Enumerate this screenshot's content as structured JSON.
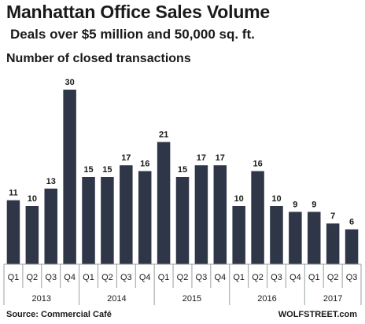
{
  "header": {
    "title": "Manhattan Office Sales Volume",
    "subtitle": "Deals over $5 million and 50,000 sq. ft.",
    "units": "Number of closed transactions"
  },
  "footer": {
    "source": "Source: Commercial Café",
    "credit": "WOLFSTREET.com"
  },
  "colors": {
    "bar": "#2e3648",
    "axis": "#9aa0a6"
  },
  "chart_data": {
    "type": "bar",
    "title": "Manhattan Office Sales Volume",
    "subtitle": "Deals over $5 million and 50,000 sq. ft.",
    "ylabel": "Number of closed transactions",
    "ylim": [
      0,
      30
    ],
    "grid": false,
    "categories": [
      "Q1",
      "Q2",
      "Q3",
      "Q4",
      "Q1",
      "Q2",
      "Q3",
      "Q4",
      "Q1",
      "Q2",
      "Q3",
      "Q4",
      "Q1",
      "Q2",
      "Q3",
      "Q4",
      "Q1",
      "Q2",
      "Q3"
    ],
    "years": [
      {
        "label": "2013",
        "count": 4
      },
      {
        "label": "2014",
        "count": 4
      },
      {
        "label": "2015",
        "count": 4
      },
      {
        "label": "2016",
        "count": 4
      },
      {
        "label": "2017",
        "count": 3
      }
    ],
    "values": [
      11,
      10,
      13,
      30,
      15,
      15,
      17,
      16,
      21,
      15,
      17,
      17,
      10,
      16,
      10,
      9,
      9,
      7,
      6
    ]
  }
}
